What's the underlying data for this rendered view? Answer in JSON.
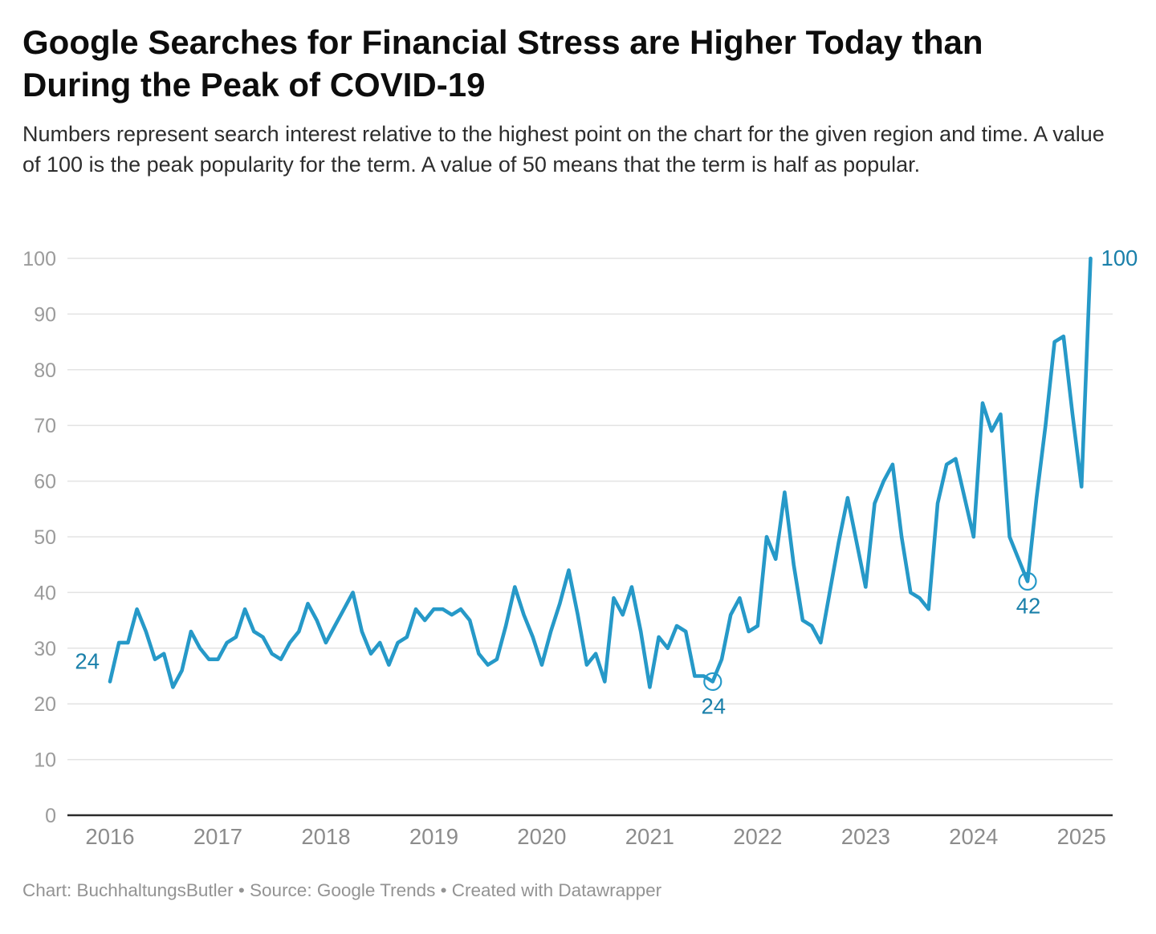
{
  "title": "Google Searches for Financial Stress are Higher Today than During the Peak of COVID-19",
  "description": "Numbers represent search interest relative to the highest point on the chart for the given region and time. A value of 100 is the peak popularity for the term. A value of 50 means that the term is half as popular.",
  "footer": "Chart: BuchhaltungsButler • Source: Google Trends • Created with Datawrapper",
  "chart_data": {
    "type": "line",
    "title": "Google Searches for Financial Stress are Higher Today than During the Peak of COVID-19",
    "xlabel": "",
    "ylabel": "",
    "frequency": "monthly",
    "x_start": "2016-01",
    "x_end": "2025-02",
    "values": [
      24,
      31,
      31,
      37,
      33,
      28,
      29,
      23,
      26,
      33,
      30,
      28,
      28,
      31,
      32,
      37,
      33,
      32,
      29,
      28,
      31,
      33,
      38,
      35,
      31,
      34,
      37,
      40,
      33,
      29,
      31,
      27,
      31,
      32,
      37,
      35,
      37,
      37,
      36,
      37,
      35,
      29,
      27,
      28,
      34,
      41,
      36,
      32,
      27,
      33,
      38,
      44,
      36,
      27,
      29,
      24,
      39,
      36,
      41,
      33,
      23,
      32,
      30,
      34,
      33,
      25,
      25,
      24,
      28,
      36,
      39,
      33,
      34,
      50,
      46,
      58,
      45,
      35,
      34,
      31,
      40,
      49,
      57,
      49,
      41,
      56,
      60,
      63,
      50,
      40,
      39,
      37,
      56,
      63,
      64,
      57,
      50,
      74,
      69,
      72,
      50,
      46,
      42,
      57,
      70,
      85,
      86,
      72,
      59,
      100
    ],
    "x_tick_labels": [
      "2016",
      "2017",
      "2018",
      "2019",
      "2020",
      "2021",
      "2022",
      "2023",
      "2024",
      "2025"
    ],
    "y_ticks": [
      0,
      10,
      20,
      30,
      40,
      50,
      60,
      70,
      80,
      90,
      100
    ],
    "ylim": [
      0,
      100
    ],
    "grid": "horizontal",
    "legend": "none",
    "line_color": "#2699c8",
    "annotation_color": "#1a80aa",
    "annotations": [
      {
        "text": "24",
        "index": 0,
        "placement": "left",
        "circled": false
      },
      {
        "text": "24",
        "index": 67,
        "placement": "below",
        "circled": true
      },
      {
        "text": "42",
        "index": 102,
        "placement": "below",
        "circled": true
      },
      {
        "text": "100",
        "index": 109,
        "placement": "right",
        "circled": false
      }
    ]
  }
}
